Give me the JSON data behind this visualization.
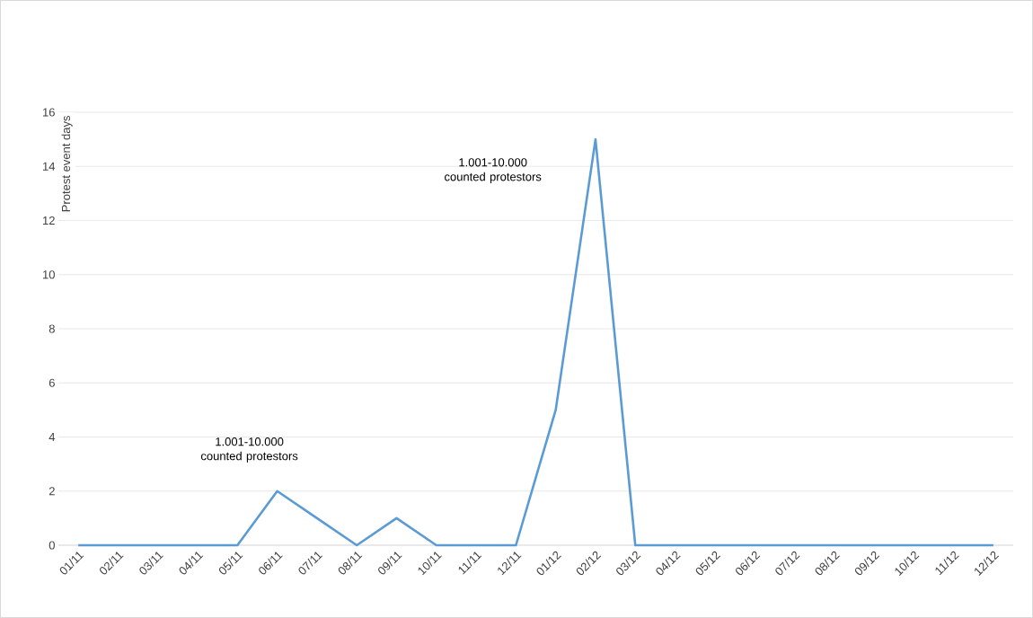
{
  "chart_data": {
    "type": "line",
    "ylabel": "Protest event days",
    "categories": [
      "01/11",
      "02/11",
      "03/11",
      "04/11",
      "05/11",
      "06/11",
      "07/11",
      "08/11",
      "09/11",
      "10/11",
      "11/11",
      "12/11",
      "01/12",
      "02/12",
      "03/12",
      "04/12",
      "05/12",
      "06/12",
      "07/12",
      "08/12",
      "09/12",
      "10/12",
      "11/12",
      "12/12"
    ],
    "values": [
      0,
      0,
      0,
      0,
      0,
      2,
      1,
      0,
      1,
      0,
      0,
      0,
      5,
      15,
      0,
      0,
      0,
      0,
      0,
      0,
      0,
      0,
      0,
      0
    ],
    "color": "#5b9bd5",
    "ylim": [
      0,
      16
    ],
    "yticks": [
      0,
      2,
      4,
      6,
      8,
      10,
      12,
      14,
      16
    ],
    "grid": "y",
    "annotations": [
      "1.001-10.000 counted protestors",
      "1.001-10.000 counted protestors"
    ]
  }
}
